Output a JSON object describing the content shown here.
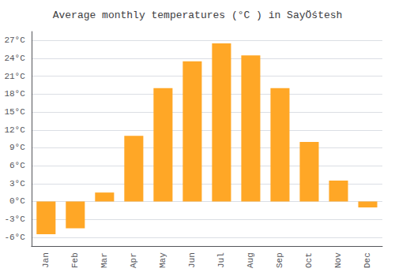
{
  "chart_data": {
    "type": "bar",
    "title": "Average monthly temperatures (°C ) in SayÖśtesh",
    "categories": [
      "Jan",
      "Feb",
      "Mar",
      "Apr",
      "May",
      "Jun",
      "Jul",
      "Aug",
      "Sep",
      "Oct",
      "Nov",
      "Dec"
    ],
    "values": [
      -5.5,
      -4.5,
      1.5,
      11.0,
      19.0,
      23.5,
      26.5,
      24.5,
      19.0,
      10.0,
      3.5,
      -1.0
    ],
    "color": "#FFA726",
    "ylim": [
      -7.5,
      28.5
    ],
    "yticks": [
      {
        "value": -6,
        "label": "-6°C"
      },
      {
        "value": -3,
        "label": "-3°C"
      },
      {
        "value": 0,
        "label": "0°C"
      },
      {
        "value": 3,
        "label": "3°C"
      },
      {
        "value": 6,
        "label": "6°C"
      },
      {
        "value": 9,
        "label": "9°C"
      },
      {
        "value": 12,
        "label": "12°C"
      },
      {
        "value": 15,
        "label": "15°C"
      },
      {
        "value": 18,
        "label": "18°C"
      },
      {
        "value": 21,
        "label": "21°C"
      },
      {
        "value": 24,
        "label": "24°C"
      },
      {
        "value": 27,
        "label": "27°C"
      }
    ],
    "grid": true
  }
}
